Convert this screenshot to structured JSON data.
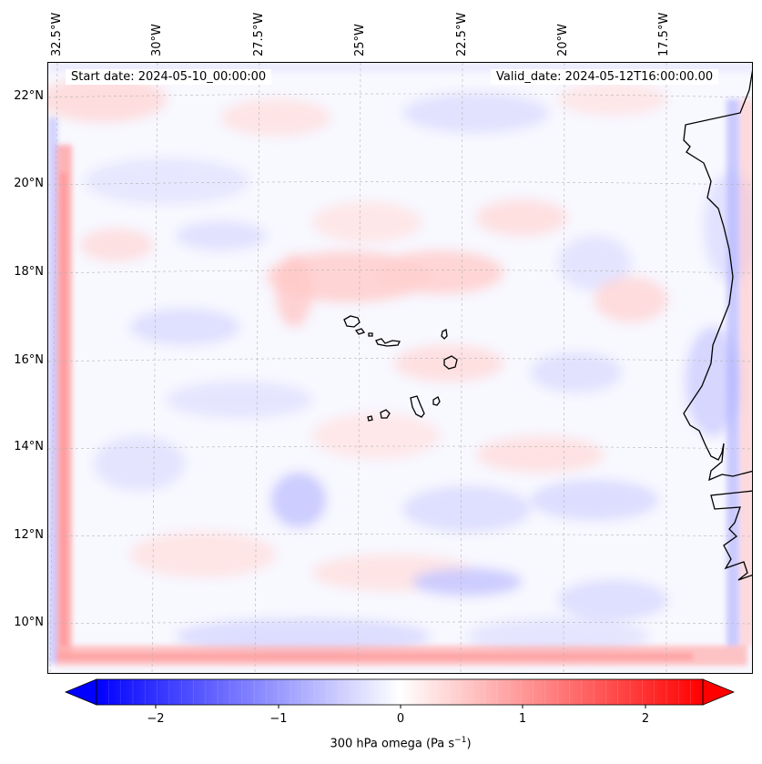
{
  "map": {
    "start_date": "Start date: 2024-05-10_00:00:00",
    "valid_date": "Valid_date: 2024-05-12T16:00:00.00",
    "lon_labels": [
      "32.5°W",
      "30°W",
      "27.5°W",
      "25°W",
      "22.5°W",
      "20°W",
      "17.5°W"
    ],
    "lat_labels": [
      "22°N",
      "20°N",
      "18°N",
      "16°N",
      "14°N",
      "12°N",
      "10°N"
    ],
    "variable": "300 hPa omega",
    "units": "Pa s⁻¹",
    "colormap": "bwr",
    "colors": {
      "negative": "#0000ff",
      "neutral": "#ffffff",
      "positive": "#ff0000",
      "coast": "#000000"
    }
  },
  "colorbar": {
    "ticks": [
      "−2",
      "−1",
      "0",
      "1",
      "2"
    ],
    "range": [
      -2.75,
      2.75
    ],
    "title_text": "300 hPa omega (Pa s",
    "title_exp": "−1",
    "title_close": ")"
  }
}
